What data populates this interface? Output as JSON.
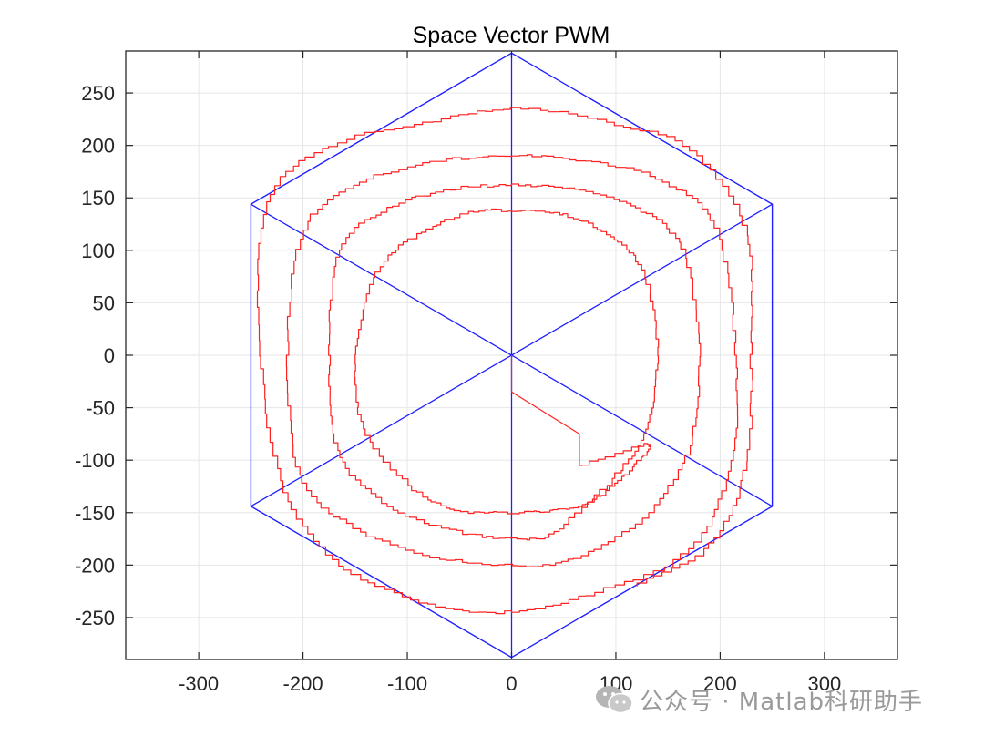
{
  "chart_data": {
    "type": "line",
    "title": "Space Vector PWM",
    "xlabel": "",
    "ylabel": "",
    "xlim": [
      -370,
      370
    ],
    "ylim": [
      -290,
      290
    ],
    "xticks": [
      -300,
      -200,
      -100,
      0,
      100,
      200,
      300
    ],
    "yticks": [
      250,
      200,
      150,
      100,
      50,
      0,
      -50,
      -100,
      -150,
      -200,
      -250
    ],
    "grid": true,
    "colors": {
      "hexagon": "#1f1fff",
      "trajectory": "#ff2020",
      "grid": "#e6e6e6",
      "axes": "#262626"
    },
    "series": [
      {
        "role": "hexagon-boundary",
        "x": [
          0,
          250,
          250,
          0,
          -250,
          -250,
          0
        ],
        "y": [
          288,
          144,
          -144,
          -288,
          -144,
          144,
          288
        ]
      },
      {
        "role": "sector-dividers",
        "segments": [
          [
            [
              -250,
              144
            ],
            [
              250,
              -144
            ]
          ],
          [
            [
              -250,
              -144
            ],
            [
              250,
              144
            ]
          ],
          [
            [
              0,
              288
            ],
            [
              0,
              -288
            ]
          ]
        ]
      },
      {
        "role": "voltage-vector-trajectory",
        "description": "spiral",
        "start": [
          0,
          0
        ],
        "x": [
          0,
          0,
          65,
          65,
          130,
          115,
          78,
          40,
          0,
          -45,
          -90,
          -140,
          -150,
          -130,
          -90,
          -45,
          0,
          45,
          90,
          125,
          140,
          130,
          100,
          45,
          0,
          -60,
          -120,
          -165,
          -175,
          -165,
          -120,
          -60,
          0,
          60,
          120,
          163,
          180,
          170,
          125,
          60,
          0,
          -70,
          -145,
          -200,
          -215,
          -200,
          -145,
          -70,
          0,
          70,
          145,
          195,
          215,
          210,
          170,
          80,
          0,
          -80,
          -160,
          -215,
          -240,
          -235,
          -175,
          -85,
          0,
          90,
          170,
          225,
          230,
          225,
          190,
          120
        ],
        "y": [
          0,
          -35,
          -75,
          -105,
          -85,
          -110,
          -140,
          -148,
          -150,
          -148,
          -128,
          -70,
          0,
          80,
          115,
          135,
          138,
          135,
          115,
          80,
          0,
          -70,
          -118,
          -168,
          -175,
          -165,
          -140,
          -90,
          0,
          100,
          140,
          158,
          162,
          158,
          140,
          100,
          0,
          -95,
          -160,
          -195,
          -200,
          -192,
          -165,
          -115,
          0,
          120,
          165,
          185,
          190,
          185,
          165,
          120,
          0,
          -110,
          -190,
          -228,
          -245,
          -235,
          -200,
          -130,
          0,
          145,
          200,
          222,
          235,
          222,
          195,
          115,
          0,
          -110,
          -185,
          -220
        ]
      }
    ]
  },
  "watermark": {
    "text": "公众号 · Matlab科研助手"
  }
}
